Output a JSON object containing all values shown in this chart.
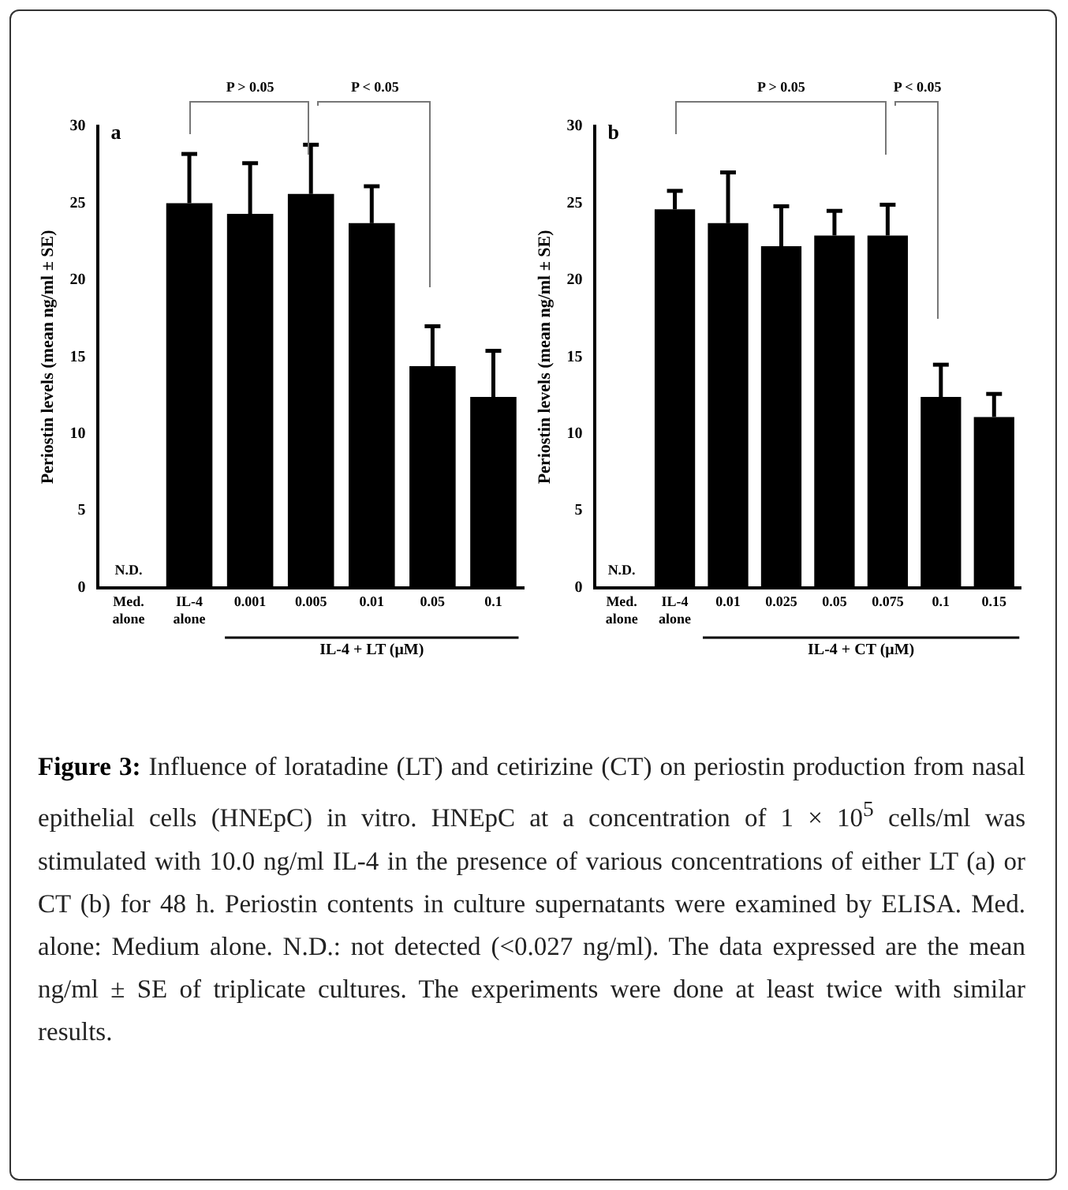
{
  "chart_data": [
    {
      "type": "bar",
      "title": "a",
      "ylabel": "Periostin levels (mean ng/ml ± SE)",
      "xlabel": "IL-4 + LT (μM)",
      "categories": [
        "Med. alone",
        "IL-4 alone",
        "0.001",
        "0.005",
        "0.01",
        "0.05",
        "0.1"
      ],
      "values": [
        null,
        25.0,
        24.3,
        25.6,
        23.7,
        14.4,
        12.4
      ],
      "errors": [
        null,
        [
          25.0,
          28.2
        ],
        [
          24.3,
          27.6
        ],
        [
          25.6,
          28.8
        ],
        [
          23.7,
          26.1
        ],
        [
          14.4,
          17.0
        ],
        [
          12.4,
          15.4
        ]
      ],
      "color": "#000000",
      "ylim": [
        0,
        30
      ],
      "yticks": [
        0,
        5,
        10,
        15,
        20,
        25,
        30
      ],
      "grid": false,
      "legend": false,
      "annotations": [
        "N.D.",
        "P > 0.05",
        "P < 0.05"
      ]
    },
    {
      "type": "bar",
      "title": "b",
      "ylabel": "Periostin levels (mean ng/ml ± SE)",
      "xlabel": "IL-4 + CT (μM)",
      "categories": [
        "Med. alone",
        "IL-4 alone",
        "0.01",
        "0.025",
        "0.05",
        "0.075",
        "0.1",
        "0.15"
      ],
      "values": [
        null,
        24.6,
        23.7,
        22.2,
        22.9,
        22.9,
        12.4,
        11.1
      ],
      "errors": [
        null,
        [
          24.6,
          25.8
        ],
        [
          23.7,
          27.0
        ],
        [
          22.2,
          24.8
        ],
        [
          22.9,
          24.5
        ],
        [
          22.9,
          24.9
        ],
        [
          12.4,
          14.5
        ],
        [
          11.1,
          12.6
        ]
      ],
      "color": "#000000",
      "ylim": [
        0,
        30
      ],
      "yticks": [
        0,
        5,
        10,
        15,
        20,
        25,
        30
      ],
      "grid": false,
      "legend": false,
      "annotations": [
        "N.D.",
        "P > 0.05",
        "P < 0.05"
      ]
    },
    {
      "type": "other",
      "annotations": [
        "Figure 3: Influence of loratadine (LT) and cetirizine (CT) on periostin production from nasal epithelial cells (HNEpC) in vitro. HNEpC at a concentration of 1 × 10$^{5}$ cells/ml was stimulated with 10.0 ng/ml IL-4 in the presence of various concentrations of either LT (a) or CT (b) for 48 h. Periostin contents in culture supernatants were examined by ELISA. Med. alone: Medium alone. N.D.: not detected (<0.027 ng/ml). The data expressed are the mean ng/ml ± SE of triplicate cultures. The experiments were done at least twice with similar results."
      ]
    }
  ]
}
